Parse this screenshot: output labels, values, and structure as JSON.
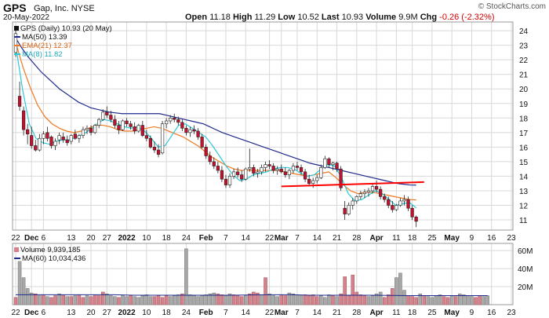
{
  "header": {
    "symbol": "GPS",
    "company": "Gap, Inc.",
    "exchange": "NYSE",
    "date": "20-May-2022",
    "credit": "© StockCharts.com",
    "open_label": "Open",
    "open": "11.18",
    "high_label": "High",
    "high": "11.29",
    "low_label": "Low",
    "low": "10.52",
    "last_label": "Last",
    "last": "10.93",
    "volume_label": "Volume",
    "volume": "9.9M",
    "chg_label": "Chg",
    "chg": "-0.26 (-2.32%)",
    "chg_color": "#d10000"
  },
  "legend": {
    "price": "GPS (Daily) 10.93 (20 May)",
    "ma50": "MA(50) 13.39",
    "ema21": "EMA(21) 12.37",
    "ma8": "MA(8) 11.82",
    "volume": "Volume 9,939,185",
    "vol_ma60": "MA(60) 10,034,436"
  },
  "colors": {
    "up": "#ffffff",
    "down": "#c8102e",
    "ma50": "#1f2a8c",
    "ema21": "#f07820",
    "ma8": "#2ec8d8",
    "trendline": "#ff0000",
    "vol_up": "#d4828c",
    "vol_down": "#a8a8a8",
    "grid": "#d8d8d8"
  },
  "chart_data": [
    {
      "type": "candlestick",
      "title": "GPS (Daily) 10.93 (20 May)",
      "ylim": [
        10.3,
        24.6
      ],
      "y_ticks": [
        11,
        12,
        13,
        14,
        15,
        16,
        17,
        18,
        19,
        20,
        21,
        22,
        23,
        24
      ],
      "x_tick_labels": [
        "22",
        "Dec",
        "6",
        "13",
        "20",
        "27",
        "2022",
        "10",
        "18",
        "24",
        "Feb",
        "7",
        "14",
        "22",
        "Mar",
        "7",
        "14",
        "21",
        "28",
        "Apr",
        "11",
        "18",
        "25",
        "May",
        "9",
        "16",
        "23"
      ],
      "x_tick_index": [
        0,
        4,
        7,
        14,
        19,
        23,
        28,
        33,
        38,
        43,
        48,
        53,
        58,
        64,
        67,
        71,
        76,
        81,
        86,
        91,
        96,
        100,
        105,
        110,
        115,
        120,
        125
      ],
      "bold_ticks": [
        "Dec",
        "2022",
        "Feb",
        "Mar",
        "Apr",
        "May"
      ],
      "ohlc": [
        [
          22.5,
          24.3,
          22.2,
          23.8
        ],
        [
          19.5,
          20.5,
          18.5,
          18.8
        ],
        [
          18.5,
          18.8,
          16.8,
          17.2
        ],
        [
          17.2,
          17.6,
          16.2,
          16.9
        ],
        [
          16.8,
          17.4,
          15.9,
          16.1
        ],
        [
          16.1,
          16.5,
          15.7,
          15.8
        ],
        [
          15.8,
          16.9,
          15.7,
          16.6
        ],
        [
          16.6,
          17.1,
          16.2,
          16.9
        ],
        [
          17.0,
          17.4,
          16.4,
          16.6
        ],
        [
          16.7,
          16.8,
          15.9,
          16.1
        ],
        [
          16.1,
          16.6,
          15.8,
          16.4
        ],
        [
          16.5,
          17.0,
          16.2,
          16.8
        ],
        [
          16.7,
          17.0,
          16.3,
          16.5
        ],
        [
          16.5,
          16.8,
          16.1,
          16.3
        ],
        [
          16.4,
          16.9,
          16.2,
          16.8
        ],
        [
          16.9,
          17.2,
          16.5,
          16.6
        ],
        [
          16.6,
          16.9,
          16.3,
          16.8
        ],
        [
          16.8,
          17.4,
          16.6,
          17.2
        ],
        [
          17.2,
          17.5,
          16.9,
          17.3
        ],
        [
          17.3,
          17.5,
          16.8,
          17.0
        ],
        [
          17.0,
          17.6,
          16.9,
          17.5
        ],
        [
          17.5,
          18.0,
          17.3,
          17.9
        ],
        [
          17.9,
          18.6,
          17.8,
          18.4
        ],
        [
          18.4,
          18.8,
          18.0,
          18.2
        ],
        [
          18.2,
          18.5,
          17.7,
          17.9
        ],
        [
          17.9,
          18.2,
          17.3,
          17.5
        ],
        [
          17.5,
          17.8,
          16.9,
          17.2
        ],
        [
          17.2,
          17.9,
          17.1,
          17.8
        ],
        [
          17.8,
          18.0,
          17.4,
          17.6
        ],
        [
          17.6,
          17.8,
          17.2,
          17.4
        ],
        [
          17.4,
          17.7,
          16.9,
          17.1
        ],
        [
          17.1,
          17.6,
          17.0,
          17.5
        ],
        [
          17.5,
          17.8,
          16.7,
          16.8
        ],
        [
          16.8,
          17.2,
          16.4,
          16.6
        ],
        [
          16.6,
          16.8,
          15.9,
          16.0
        ],
        [
          16.0,
          16.4,
          15.6,
          15.8
        ],
        [
          15.8,
          16.2,
          15.3,
          15.5
        ],
        [
          15.6,
          17.8,
          15.5,
          17.6
        ],
        [
          17.6,
          18.0,
          17.3,
          17.8
        ],
        [
          17.8,
          18.2,
          17.6,
          18.0
        ],
        [
          18.0,
          18.3,
          17.7,
          17.9
        ],
        [
          17.9,
          18.1,
          17.5,
          17.7
        ],
        [
          17.7,
          17.9,
          17.1,
          17.3
        ],
        [
          17.3,
          17.5,
          16.8,
          17.0
        ],
        [
          17.0,
          17.4,
          16.7,
          17.2
        ],
        [
          17.2,
          17.5,
          16.9,
          17.1
        ],
        [
          17.1,
          17.3,
          16.5,
          16.7
        ],
        [
          16.7,
          16.9,
          15.9,
          16.0
        ],
        [
          16.0,
          16.2,
          15.2,
          15.4
        ],
        [
          15.4,
          15.7,
          14.8,
          15.0
        ],
        [
          15.0,
          15.3,
          14.5,
          14.7
        ],
        [
          14.7,
          15.0,
          14.2,
          14.4
        ],
        [
          14.4,
          14.7,
          13.6,
          13.8
        ],
        [
          13.8,
          14.1,
          13.2,
          13.4
        ],
        [
          13.4,
          14.2,
          13.2,
          14.0
        ],
        [
          14.0,
          14.5,
          13.8,
          14.3
        ],
        [
          14.3,
          14.6,
          13.9,
          14.1
        ],
        [
          14.1,
          14.4,
          13.6,
          13.8
        ],
        [
          13.8,
          14.6,
          13.7,
          14.5
        ],
        [
          14.5,
          15.9,
          14.3,
          14.6
        ],
        [
          14.6,
          14.8,
          14.0,
          14.2
        ],
        [
          14.2,
          14.5,
          13.9,
          14.3
        ],
        [
          14.3,
          14.8,
          14.1,
          14.6
        ],
        [
          14.6,
          15.0,
          14.3,
          14.8
        ],
        [
          14.8,
          15.1,
          14.5,
          14.7
        ],
        [
          14.7,
          14.9,
          14.2,
          14.4
        ],
        [
          14.4,
          14.7,
          14.1,
          14.5
        ],
        [
          14.5,
          14.8,
          14.2,
          14.3
        ],
        [
          14.3,
          14.6,
          13.9,
          14.1
        ],
        [
          14.1,
          14.5,
          13.8,
          14.4
        ],
        [
          14.4,
          14.9,
          14.2,
          14.7
        ],
        [
          14.7,
          15.0,
          14.4,
          14.6
        ],
        [
          14.6,
          14.8,
          14.1,
          14.3
        ],
        [
          14.3,
          14.5,
          13.6,
          13.8
        ],
        [
          13.8,
          14.1,
          13.3,
          13.5
        ],
        [
          13.5,
          13.9,
          13.2,
          13.7
        ],
        [
          13.7,
          14.1,
          13.5,
          13.9
        ],
        [
          13.9,
          14.8,
          13.8,
          14.6
        ],
        [
          14.6,
          15.4,
          14.5,
          15.2
        ],
        [
          15.2,
          15.3,
          14.6,
          14.8
        ],
        [
          14.8,
          15.0,
          14.4,
          14.9
        ],
        [
          14.9,
          15.0,
          14.3,
          14.5
        ],
        [
          14.5,
          14.7,
          13.0,
          13.2
        ],
        [
          11.8,
          12.3,
          11.0,
          11.4
        ],
        [
          11.4,
          12.2,
          11.3,
          12.0
        ],
        [
          12.0,
          12.5,
          11.7,
          12.3
        ],
        [
          12.3,
          12.7,
          12.1,
          12.6
        ],
        [
          12.6,
          13.0,
          12.4,
          12.8
        ],
        [
          12.8,
          13.1,
          12.5,
          12.9
        ],
        [
          12.9,
          13.2,
          12.6,
          13.0
        ],
        [
          13.0,
          13.5,
          12.8,
          13.3
        ],
        [
          13.3,
          13.7,
          12.9,
          13.1
        ],
        [
          13.1,
          13.3,
          12.4,
          12.6
        ],
        [
          12.6,
          12.8,
          12.2,
          12.4
        ],
        [
          12.4,
          12.6,
          11.8,
          12.0
        ],
        [
          12.0,
          12.3,
          11.5,
          11.7
        ],
        [
          11.7,
          12.1,
          11.6,
          12.0
        ],
        [
          12.0,
          12.5,
          11.9,
          12.3
        ],
        [
          12.3,
          12.7,
          12.0,
          12.4
        ],
        [
          12.4,
          12.6,
          11.6,
          11.8
        ],
        [
          11.8,
          12.0,
          11.0,
          11.2
        ],
        [
          11.2,
          11.3,
          10.5,
          10.9
        ]
      ],
      "ma50": [
        23.5,
        22.8,
        22.2,
        21.7,
        21.2,
        20.8,
        20.4,
        20.0,
        19.7,
        19.4,
        19.1,
        18.9,
        18.7,
        18.6,
        18.5,
        18.4,
        18.35,
        18.3,
        18.3,
        18.3,
        18.3,
        18.3,
        18.3,
        18.3,
        18.2,
        18.1,
        18.0,
        17.9,
        17.8,
        17.7,
        17.6,
        17.4,
        17.2,
        17.0,
        16.85,
        16.7,
        16.55,
        16.4,
        16.25,
        16.1,
        15.95,
        15.8,
        15.65,
        15.5,
        15.35,
        15.2,
        15.05,
        14.9,
        14.8,
        14.7,
        14.6,
        14.5,
        14.4,
        14.3,
        14.2,
        14.1,
        14.0,
        13.9,
        13.8,
        13.7,
        13.6,
        13.5,
        13.45,
        13.4,
        13.39
      ],
      "ema21": [
        23.2,
        21.5,
        20.1,
        18.9,
        18.1,
        17.6,
        17.3,
        17.1,
        17.0,
        17.1,
        17.3,
        17.5,
        17.5,
        17.4,
        17.2,
        17.1,
        17.1,
        17.2,
        17.3,
        17.4,
        17.3,
        17.1,
        16.9,
        16.7,
        16.4,
        16.1,
        15.7,
        15.3,
        15.0,
        14.7,
        14.5,
        14.4,
        14.4,
        14.4,
        14.4,
        14.4,
        14.4,
        14.3,
        14.2,
        14.1,
        14.0,
        14.1,
        14.2,
        14.3,
        13.9,
        13.4,
        13.0,
        12.8,
        12.9,
        12.9,
        12.8,
        12.7,
        12.6,
        12.5,
        12.4,
        12.37
      ],
      "ma8": [
        23.0,
        20.0,
        17.6,
        16.6,
        16.3,
        16.2,
        16.4,
        16.5,
        16.5,
        16.7,
        16.9,
        17.2,
        17.6,
        17.9,
        17.8,
        17.6,
        17.4,
        17.3,
        17.4,
        17.1,
        16.6,
        16.0,
        16.1,
        16.8,
        17.5,
        17.6,
        17.3,
        17.0,
        16.7,
        16.1,
        15.4,
        14.7,
        14.1,
        13.7,
        13.8,
        14.1,
        14.2,
        14.3,
        14.5,
        14.6,
        14.6,
        14.5,
        14.2,
        14.0,
        14.1,
        14.5,
        14.8,
        14.7,
        13.9,
        12.8,
        12.3,
        12.4,
        12.7,
        13.0,
        12.8,
        12.4,
        12.0,
        12.1,
        12.2,
        11.82
      ],
      "trendline": [
        [
          67,
          13.3
        ],
        [
          103,
          13.6
        ]
      ]
    },
    {
      "type": "bar",
      "title": "Volume 9,939,185",
      "ylim": [
        0,
        68
      ],
      "y_ticks": [
        20,
        40,
        60
      ],
      "y_tick_labels": [
        "20M",
        "40M",
        "60M"
      ],
      "units": "millions",
      "values": [
        8,
        48,
        30,
        18,
        13,
        12,
        10,
        11,
        9,
        8,
        10,
        12,
        11,
        9,
        9,
        10,
        11,
        8,
        10,
        9,
        11,
        10,
        14,
        12,
        10,
        9,
        8,
        10,
        9,
        10,
        9,
        8,
        10,
        11,
        9,
        9,
        10,
        8,
        10,
        9,
        10,
        11,
        12,
        62,
        11,
        10,
        9,
        10,
        11,
        12,
        13,
        12,
        11,
        10,
        12,
        11,
        10,
        9,
        10,
        12,
        14,
        13,
        11,
        30,
        12,
        10,
        9,
        11,
        10,
        13,
        12,
        11,
        10,
        11,
        10,
        11,
        9,
        10,
        8,
        11,
        10,
        9,
        12,
        31,
        10,
        33,
        14,
        11,
        10,
        9,
        10,
        12,
        14,
        8,
        11,
        18,
        30,
        35,
        16,
        10,
        9,
        8,
        12,
        10,
        9,
        8,
        10,
        11,
        9,
        8,
        10,
        9,
        12,
        11,
        10,
        9,
        8,
        10,
        9,
        10
      ],
      "up": [
        1,
        0,
        0,
        0,
        0,
        1,
        0,
        1,
        0,
        1,
        1,
        0,
        1,
        0,
        1,
        0,
        1,
        1,
        0,
        1,
        1,
        1,
        1,
        0,
        0,
        0,
        1,
        0,
        0,
        1,
        0,
        0,
        0,
        0,
        0,
        1,
        1,
        1,
        1,
        0,
        0,
        0,
        1,
        0,
        0,
        0,
        0,
        0,
        0,
        0,
        0,
        1,
        1,
        0,
        0,
        1,
        1,
        1,
        0,
        1,
        1,
        1,
        0,
        1,
        0,
        0,
        0,
        1,
        1,
        0,
        0,
        0,
        0,
        1,
        1,
        1,
        1,
        0,
        0,
        0,
        1,
        0,
        1,
        1,
        1,
        1,
        1,
        1,
        1,
        0,
        0,
        0,
        0,
        1,
        1,
        1,
        0,
        0,
        0,
        1,
        1,
        1,
        0,
        1,
        0,
        0,
        0,
        0,
        1,
        1,
        0,
        1,
        0,
        0,
        0,
        0,
        1,
        1,
        0,
        0
      ],
      "ma60": [
        11,
        11,
        11,
        11,
        11,
        11,
        10.5,
        10.5,
        10.5,
        10.5,
        10.5,
        10.5,
        10.8,
        11,
        11,
        10.5,
        10.5,
        10.5,
        10.5,
        10.2,
        10,
        10,
        10,
        10,
        10
      ]
    }
  ]
}
